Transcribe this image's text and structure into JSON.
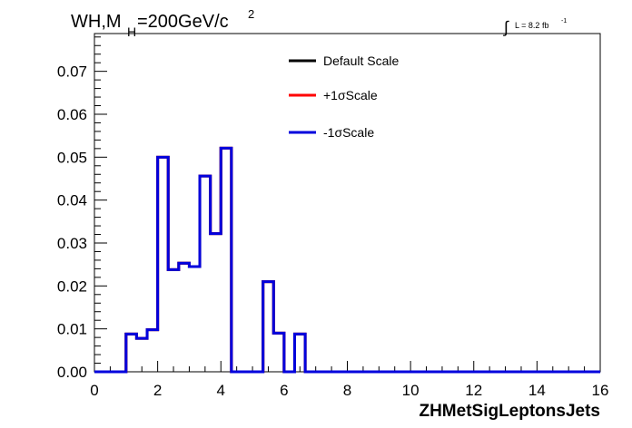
{
  "chart_data": {
    "type": "line",
    "title_main": "WH,M",
    "title_sub": "H",
    "title_rest": "=200GeV/c",
    "title_sup": "2",
    "lumi_label": "L = 8.2 fb",
    "lumi_sup": "-1",
    "xlabel": "ZHMetSigLeptonsJets",
    "ylabel": "",
    "xlim": [
      0,
      16
    ],
    "ylim": [
      0,
      0.0788
    ],
    "x_ticks": [
      0,
      2,
      4,
      6,
      8,
      10,
      12,
      14,
      16
    ],
    "x_tick_labels": [
      "0",
      "2",
      "4",
      "6",
      "8",
      "10",
      "12",
      "14",
      "16"
    ],
    "y_ticks": [
      0,
      0.01,
      0.02,
      0.03,
      0.04,
      0.05,
      0.06,
      0.07
    ],
    "y_tick_labels": [
      "0.00",
      "0.01",
      "0.02",
      "0.03",
      "0.04",
      "0.05",
      "0.06",
      "0.07"
    ],
    "bin_edges": [
      0,
      0.333,
      0.667,
      1,
      1.333,
      1.667,
      2,
      2.333,
      2.667,
      3,
      3.333,
      3.667,
      4,
      4.333,
      4.667,
      5,
      5.333,
      5.667,
      6,
      6.333,
      6.667,
      7,
      7.333,
      7.667,
      8,
      8.333,
      8.667,
      9,
      9.333,
      9.667,
      10,
      10.333,
      10.667,
      11,
      11.333,
      11.667,
      12,
      12.333,
      12.667,
      13,
      13.333,
      13.667,
      14,
      14.333,
      14.667,
      15,
      15.333,
      15.667,
      16
    ],
    "series": [
      {
        "name": "Default Scale",
        "color": "#000000",
        "values": [
          0,
          0,
          0,
          0.0088,
          0.0078,
          0.0098,
          0.05,
          0.0238,
          0.0253,
          0.0245,
          0.0456,
          0.0322,
          0.0521,
          0,
          0,
          0,
          0.021,
          0.009,
          0,
          0.0088,
          0,
          0,
          0,
          0,
          0,
          0,
          0,
          0,
          0,
          0,
          0,
          0,
          0,
          0,
          0,
          0,
          0,
          0,
          0,
          0,
          0,
          0,
          0,
          0,
          0,
          0,
          0,
          0
        ]
      },
      {
        "name": "+1σScale",
        "color": "#ff0000",
        "values": [
          0,
          0,
          0,
          0.0088,
          0.0078,
          0.0098,
          0.05,
          0.0238,
          0.0253,
          0.0245,
          0.0456,
          0.0322,
          0.0521,
          0,
          0,
          0,
          0.021,
          0.009,
          0,
          0.0088,
          0,
          0,
          0,
          0,
          0,
          0,
          0,
          0,
          0,
          0,
          0,
          0,
          0,
          0,
          0,
          0,
          0,
          0,
          0,
          0,
          0,
          0,
          0,
          0,
          0,
          0,
          0,
          0
        ]
      },
      {
        "name": "-1σScale",
        "color": "#0000dd",
        "values": [
          0,
          0,
          0,
          0.0088,
          0.0078,
          0.0098,
          0.05,
          0.0238,
          0.0253,
          0.0245,
          0.0456,
          0.0322,
          0.0521,
          0,
          0,
          0,
          0.021,
          0.009,
          0,
          0.0088,
          0,
          0,
          0,
          0,
          0,
          0,
          0,
          0,
          0,
          0,
          0,
          0,
          0,
          0,
          0,
          0,
          0,
          0,
          0,
          0,
          0,
          0,
          0,
          0,
          0,
          0,
          0,
          0
        ]
      }
    ],
    "legend_position": "top-center",
    "grid": false
  }
}
